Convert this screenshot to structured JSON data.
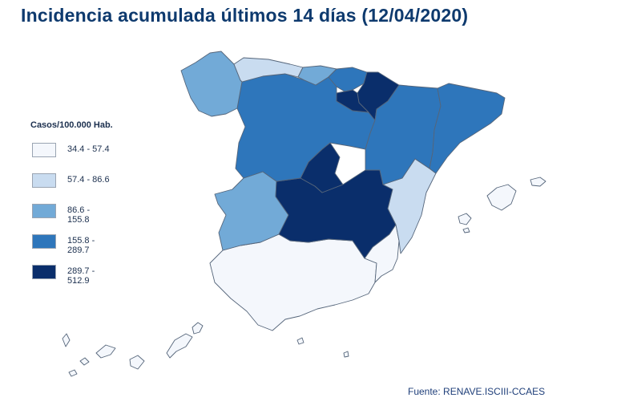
{
  "title": "Incidencia acumulada últimos 14 días (12/04/2020)",
  "legend": {
    "title": "Casos/100.000 Hab.",
    "items": [
      {
        "label": "34.4 - 57.4",
        "color": "#f4f7fc"
      },
      {
        "label": "57.4 - 86.6",
        "color": "#c9dcf0"
      },
      {
        "label": "86.6 - 155.8",
        "color": "#72aad7"
      },
      {
        "label": "155.8 - 289.7",
        "color": "#2e76bb"
      },
      {
        "label": "289.7 - 512.9",
        "color": "#0a2e6b"
      }
    ]
  },
  "regions": [
    {
      "name": "Galicia",
      "class": 2
    },
    {
      "name": "Asturias",
      "class": 1
    },
    {
      "name": "Cantabria",
      "class": 2
    },
    {
      "name": "País Vasco",
      "class": 3
    },
    {
      "name": "Navarra",
      "class": 4
    },
    {
      "name": "La Rioja",
      "class": 4
    },
    {
      "name": "Castilla y León",
      "class": 3
    },
    {
      "name": "Aragón",
      "class": 3
    },
    {
      "name": "Cataluña",
      "class": 3
    },
    {
      "name": "Madrid",
      "class": 4
    },
    {
      "name": "Castilla-La Mancha",
      "class": 4
    },
    {
      "name": "Comunitat Valenciana",
      "class": 1
    },
    {
      "name": "Extremadura",
      "class": 2
    },
    {
      "name": "Andalucía",
      "class": 0
    },
    {
      "name": "Murcia",
      "class": 0
    },
    {
      "name": "Illes Balears",
      "class": 0
    },
    {
      "name": "Canarias",
      "class": 0
    },
    {
      "name": "Ceuta",
      "class": 0
    },
    {
      "name": "Melilla",
      "class": 0
    }
  ],
  "source": "Fuente: RENAVE.ISCIII-CCAES"
}
